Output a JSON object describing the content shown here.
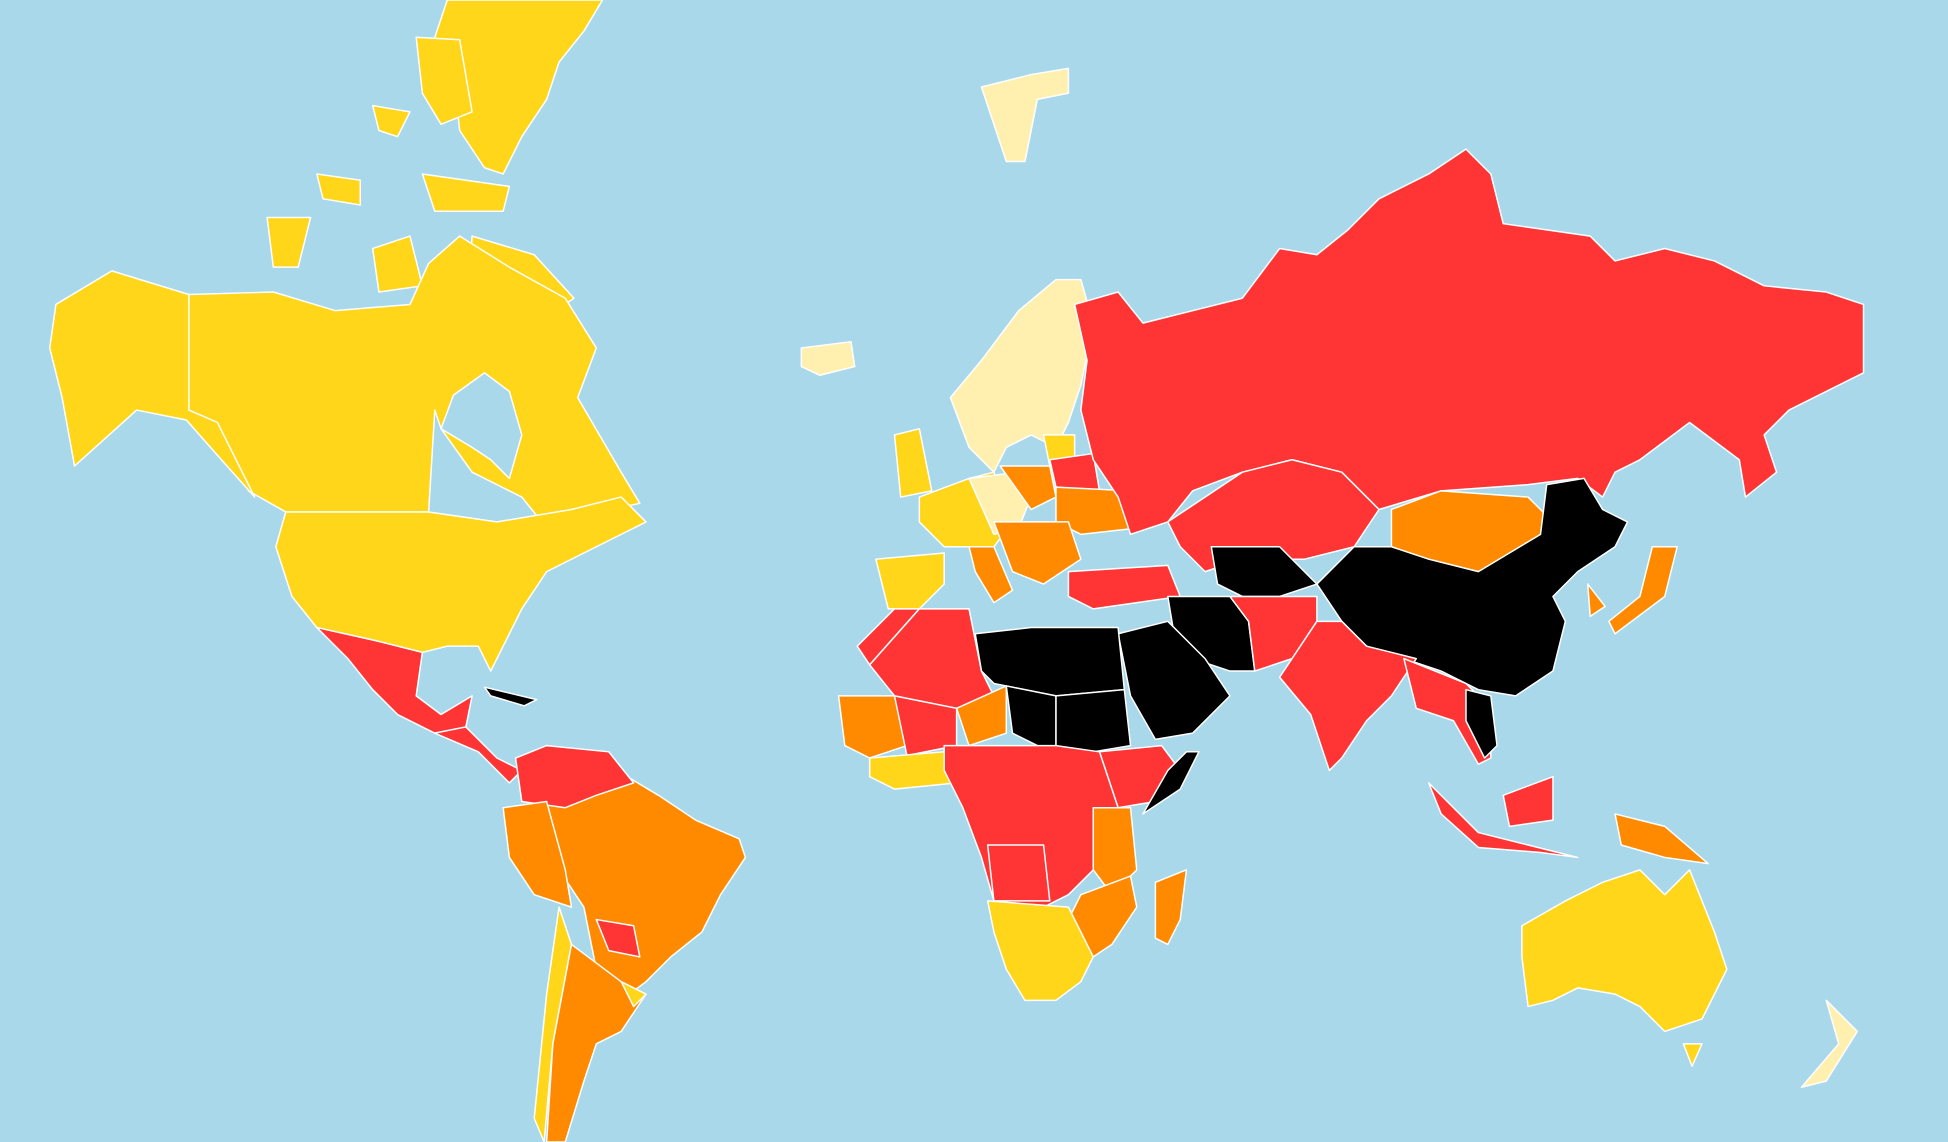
{
  "map": {
    "ocean_color": "#A9D8EA",
    "border_color": "#FFFFFF",
    "palette": {
      "good": "#FFF0B0",
      "satisfactory": "#FFD619",
      "problematic": "#FF8A00",
      "difficult": "#FF3535",
      "very_serious": "#000000"
    }
  }
}
